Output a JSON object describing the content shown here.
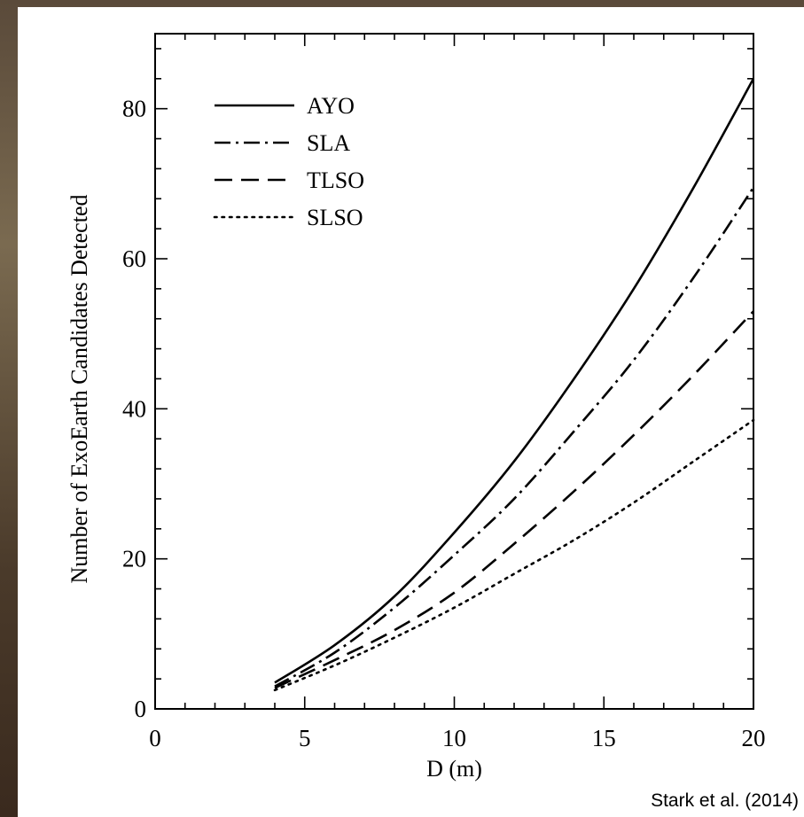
{
  "chart_data": {
    "type": "line",
    "xlabel": "D (m)",
    "ylabel": "Number of ExoEarth Candidates Detected",
    "xlim": [
      0,
      20
    ],
    "ylim": [
      0,
      90
    ],
    "xticks": [
      0,
      5,
      10,
      15,
      20
    ],
    "yticks": [
      0,
      20,
      40,
      60,
      80
    ],
    "legend_position": "top-left",
    "grid": false,
    "series": [
      {
        "name": "AYO",
        "style": "solid",
        "x": [
          4,
          6,
          8,
          10,
          12,
          14,
          16,
          18,
          20
        ],
        "y": [
          3.5,
          8.5,
          15,
          23.5,
          33,
          44,
          56,
          69.5,
          84
        ]
      },
      {
        "name": "SLA",
        "style": "dash-dot",
        "x": [
          4,
          6,
          8,
          10,
          12,
          14,
          16,
          18,
          20
        ],
        "y": [
          3.0,
          7.5,
          13.5,
          20.5,
          28,
          37,
          46.5,
          57.5,
          69.5
        ]
      },
      {
        "name": "TLSO",
        "style": "dashed",
        "x": [
          4,
          6,
          8,
          10,
          12,
          14,
          16,
          18,
          20
        ],
        "y": [
          2.8,
          6.5,
          10.5,
          15.5,
          22,
          29,
          36.5,
          44.5,
          53
        ]
      },
      {
        "name": "SLSO",
        "style": "dotted",
        "x": [
          4,
          6,
          8,
          10,
          12,
          14,
          16,
          18,
          20
        ],
        "y": [
          2.5,
          5.8,
          9.5,
          13.5,
          18,
          22.5,
          27.5,
          33,
          38.5
        ]
      }
    ]
  },
  "citation": "Stark et al. (2014)"
}
